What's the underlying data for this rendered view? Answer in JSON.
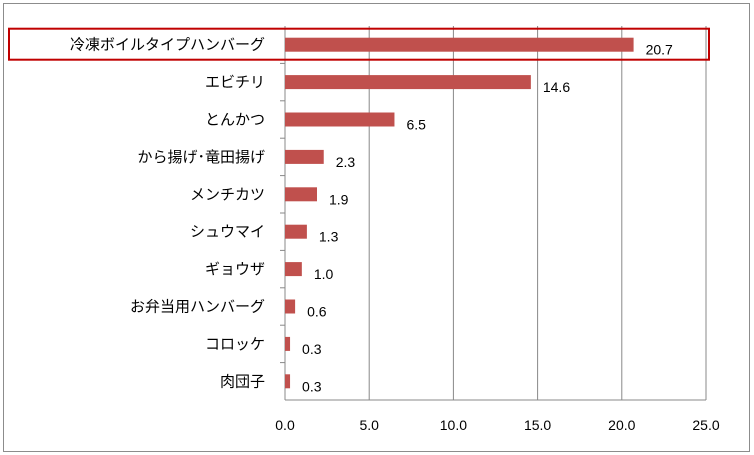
{
  "chart_data": {
    "type": "bar",
    "orientation": "horizontal",
    "categories": [
      "冷凍ボイルタイプハンバーグ",
      "エビチリ",
      "とんかつ",
      "から揚げ･竜田揚げ",
      "メンチカツ",
      "シュウマイ",
      "ギョウザ",
      "お弁当用ハンバーグ",
      "コロッケ",
      "肉団子"
    ],
    "values": [
      20.7,
      14.6,
      6.5,
      2.3,
      1.9,
      1.3,
      1.0,
      0.6,
      0.3,
      0.3
    ],
    "value_labels": [
      "20.7",
      "14.6",
      "6.5",
      "2.3",
      "1.9",
      "1.3",
      "1.0",
      "0.6",
      "0.3",
      "0.3"
    ],
    "xlim": [
      0,
      25
    ],
    "xticks": [
      "0.0",
      "5.0",
      "10.0",
      "15.0",
      "20.0",
      "25.0"
    ],
    "grid": "vertical",
    "bar_color": "#c0504d",
    "highlighted_category": "冷凍ボイルタイプハンバーグ",
    "highlight_color": "#c00000"
  }
}
